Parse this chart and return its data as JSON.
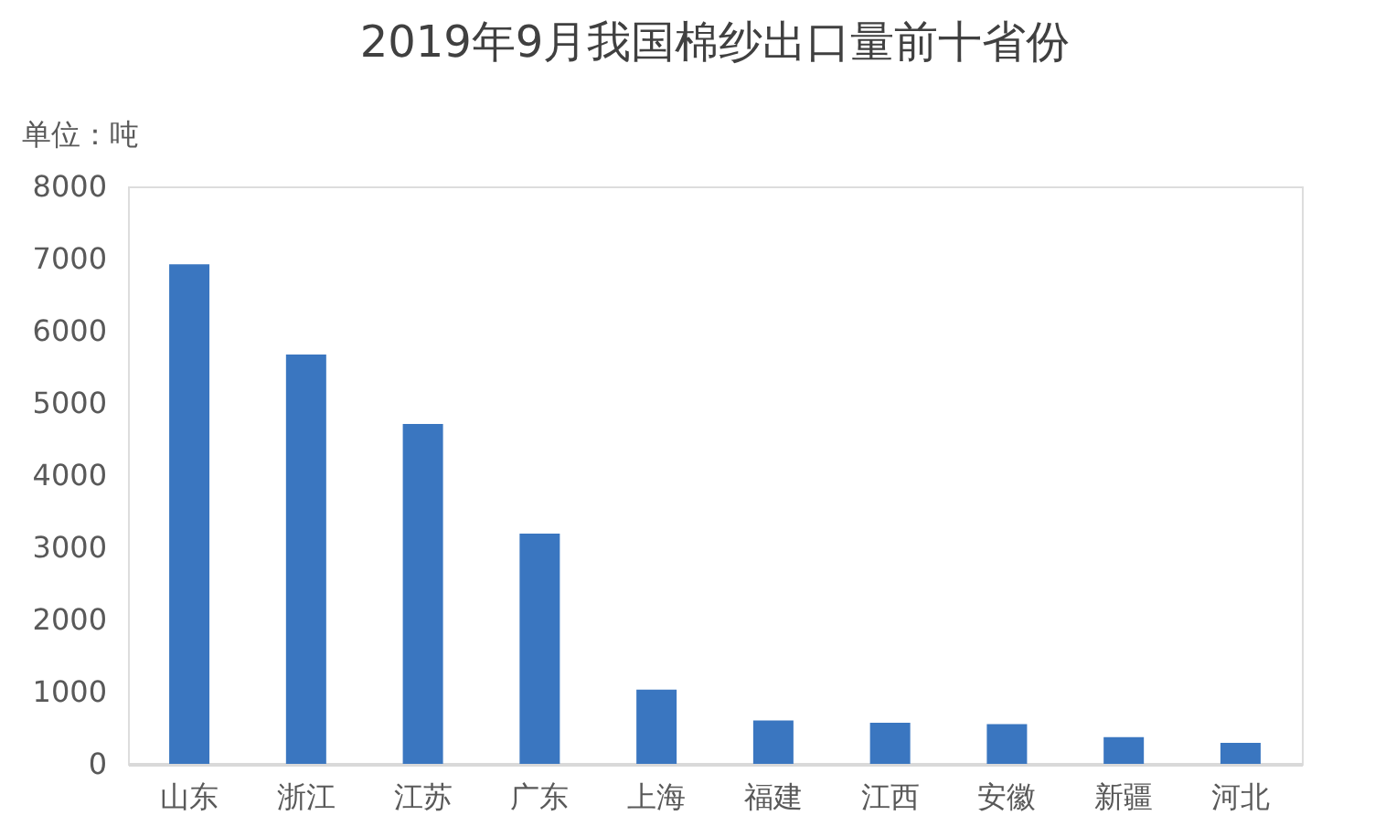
{
  "chart_data": {
    "type": "bar",
    "title": "2019年9月我国棉纱出口量前十省份",
    "ylabel": "单位：吨",
    "categories": [
      "山东",
      "浙江",
      "江苏",
      "广东",
      "上海",
      "福建",
      "江西",
      "安徽",
      "新疆",
      "河北"
    ],
    "values": [
      6920,
      5670,
      4710,
      3190,
      1030,
      600,
      570,
      550,
      370,
      290
    ],
    "color": "#3a76c0",
    "ylim": [
      0,
      8000
    ],
    "yticks": [
      0,
      1000,
      2000,
      3000,
      4000,
      5000,
      6000,
      7000,
      8000
    ],
    "grid": false
  }
}
